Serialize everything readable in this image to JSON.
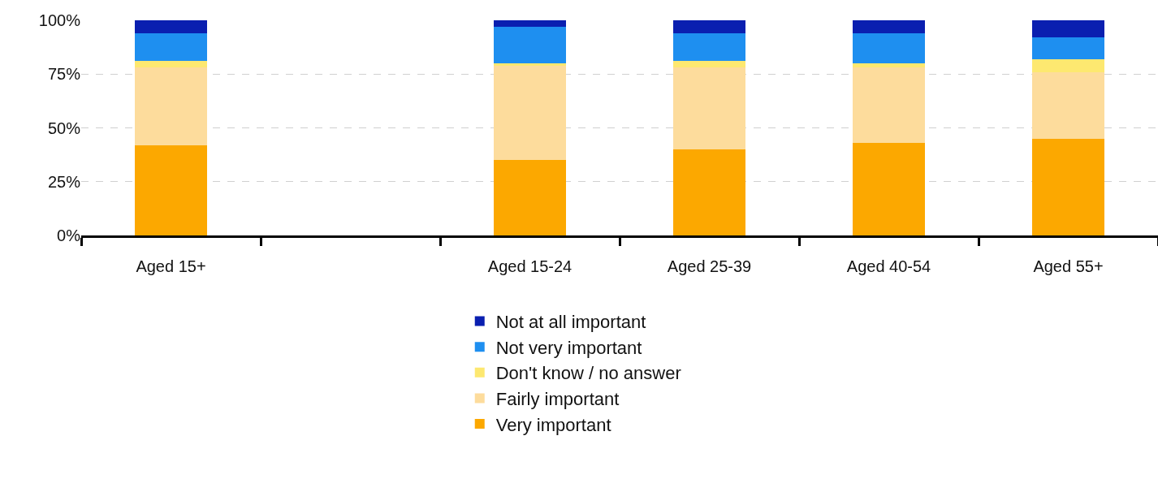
{
  "chart_data": {
    "type": "bar",
    "stacked": true,
    "categories": [
      "Aged 15+",
      null,
      "Aged 15-24",
      "Aged 25-39",
      "Aged 40-54",
      "Aged 55+"
    ],
    "series": [
      {
        "name": "Very important",
        "color": "#fca800",
        "values": [
          42,
          null,
          35,
          40,
          43,
          45
        ]
      },
      {
        "name": "Fairly important",
        "color": "#fddc9c",
        "values": [
          36,
          null,
          44,
          38,
          35,
          31
        ]
      },
      {
        "name": "Don't know / no answer",
        "color": "#fde870",
        "values": [
          3,
          null,
          1,
          3,
          2,
          6
        ]
      },
      {
        "name": "Not very important",
        "color": "#1e8ff0",
        "values": [
          13,
          null,
          17,
          13,
          14,
          10
        ]
      },
      {
        "name": "Not at all important",
        "color": "#0a1fb0",
        "values": [
          6,
          null,
          3,
          6,
          6,
          8
        ]
      }
    ],
    "ylim": [
      0,
      100
    ],
    "yticks": [
      {
        "value": 0,
        "label": "0%"
      },
      {
        "value": 25,
        "label": "25%"
      },
      {
        "value": 50,
        "label": "50%"
      },
      {
        "value": 75,
        "label": "75%"
      },
      {
        "value": 100,
        "label": "100%"
      }
    ],
    "grid": "y",
    "legend": "bottom"
  }
}
